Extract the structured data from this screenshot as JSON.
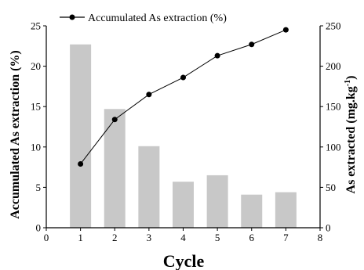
{
  "chart_data": {
    "type": "bar+line",
    "categories": [
      1,
      2,
      3,
      4,
      5,
      6,
      7
    ],
    "xlabel": "Cycle",
    "xlim": [
      0,
      8
    ],
    "x_ticks": [
      0,
      1,
      2,
      3,
      4,
      5,
      6,
      7,
      8
    ],
    "y_left": {
      "label": "Accumulated As extraction (%)",
      "lim": [
        0,
        25
      ],
      "ticks": [
        0,
        5,
        10,
        15,
        20,
        25
      ]
    },
    "y_right": {
      "label_main": "As extracted (mg.kg",
      "label_sup": "-1",
      "label_close": ")",
      "lim": [
        0,
        250
      ],
      "ticks": [
        0,
        50,
        100,
        150,
        200,
        250
      ]
    },
    "series": [
      {
        "name": "Accumulated As extraction (%)",
        "type": "line",
        "axis": "left",
        "color": "#000000",
        "values": [
          7.9,
          13.4,
          16.5,
          18.6,
          21.3,
          22.7,
          24.5
        ]
      },
      {
        "type": "bar",
        "axis": "right",
        "color": "#c8c8c8",
        "values": [
          227,
          147,
          101,
          57,
          65,
          41,
          44
        ]
      }
    ],
    "legend": {
      "position": "top-left"
    }
  }
}
